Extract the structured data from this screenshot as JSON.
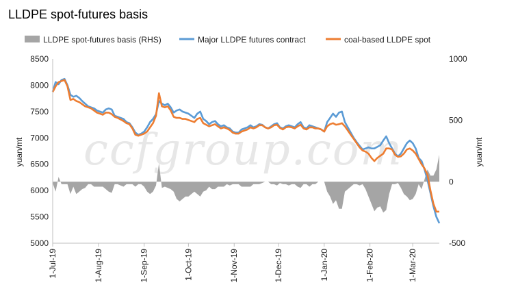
{
  "chart_data": {
    "type": "line",
    "title": "LLDPE spot-futures basis",
    "watermark": "ccfgroup.com",
    "ylabel_left": "yuan/mt",
    "ylabel_right": "yuan/mt",
    "ylim_left": [
      5000,
      8500
    ],
    "yticks_left": [
      5000,
      5500,
      6000,
      6500,
      7000,
      7500,
      8000,
      8500
    ],
    "ylim_right": [
      -500,
      1000
    ],
    "yticks_right": [
      -500,
      0,
      500,
      1000
    ],
    "x_range": [
      0,
      262
    ],
    "x_ticks": [
      {
        "label": "1-Jul-19",
        "x": 0
      },
      {
        "label": "1-Aug-19",
        "x": 31
      },
      {
        "label": "1-Sep-19",
        "x": 62
      },
      {
        "label": "1-Oct-19",
        "x": 92
      },
      {
        "label": "1-Nov-19",
        "x": 123
      },
      {
        "label": "1-Dec-19",
        "x": 153
      },
      {
        "label": "1-Jan-20",
        "x": 184
      },
      {
        "label": "1-Feb-20",
        "x": 215
      },
      {
        "label": "1-Mar-20",
        "x": 244
      }
    ],
    "legend": [
      {
        "name": "LLDPE spot-futures basis (RHS)",
        "color": "#a5a5a5",
        "kind": "area"
      },
      {
        "name": "Major LLDPE futures contract",
        "color": "#5b9bd5",
        "kind": "line"
      },
      {
        "name": "coal-based LLDPE spot",
        "color": "#ed7d31",
        "kind": "line"
      }
    ],
    "series": [
      {
        "name": "Major LLDPE futures contract",
        "axis": "left",
        "color": "#5b9bd5",
        "x": [
          0,
          2,
          4,
          6,
          8,
          10,
          12,
          14,
          16,
          18,
          20,
          22,
          24,
          26,
          28,
          30,
          32,
          34,
          36,
          38,
          40,
          42,
          44,
          46,
          48,
          50,
          52,
          54,
          56,
          58,
          60,
          62,
          64,
          66,
          68,
          70,
          72,
          74,
          76,
          78,
          80,
          82,
          84,
          86,
          88,
          90,
          92,
          94,
          96,
          98,
          100,
          102,
          104,
          106,
          108,
          110,
          112,
          114,
          116,
          118,
          120,
          122,
          124,
          126,
          128,
          130,
          132,
          134,
          136,
          138,
          140,
          142,
          144,
          146,
          148,
          150,
          152,
          154,
          156,
          158,
          160,
          162,
          164,
          166,
          168,
          170,
          172,
          174,
          176,
          178,
          180,
          182,
          184,
          186,
          188,
          190,
          192,
          194,
          196,
          198,
          200,
          202,
          204,
          206,
          208,
          210,
          212,
          214,
          216,
          218,
          220,
          222,
          224,
          226,
          228,
          230,
          232,
          234,
          236,
          238,
          240,
          242,
          244,
          246,
          248,
          250,
          252,
          254,
          256,
          258,
          260,
          262
        ],
        "values": [
          7880,
          8060,
          8020,
          8100,
          8120,
          8000,
          7820,
          7780,
          7800,
          7760,
          7700,
          7650,
          7600,
          7580,
          7560,
          7520,
          7500,
          7480,
          7540,
          7560,
          7540,
          7420,
          7400,
          7380,
          7360,
          7300,
          7280,
          7200,
          7100,
          7060,
          7080,
          7120,
          7200,
          7300,
          7360,
          7450,
          7700,
          7650,
          7620,
          7650,
          7580,
          7480,
          7520,
          7540,
          7500,
          7480,
          7460,
          7420,
          7380,
          7460,
          7500,
          7360,
          7320,
          7260,
          7300,
          7320,
          7260,
          7220,
          7240,
          7200,
          7180,
          7120,
          7100,
          7100,
          7160,
          7180,
          7200,
          7240,
          7200,
          7220,
          7260,
          7250,
          7200,
          7180,
          7220,
          7260,
          7280,
          7200,
          7180,
          7220,
          7240,
          7220,
          7200,
          7260,
          7300,
          7200,
          7180,
          7240,
          7220,
          7200,
          7180,
          7160,
          7120,
          7300,
          7380,
          7460,
          7400,
          7480,
          7500,
          7300,
          7200,
          7100,
          7000,
          6920,
          6850,
          6780,
          6800,
          6820,
          6800,
          6800,
          6830,
          6860,
          6950,
          7030,
          6900,
          6800,
          6700,
          6650,
          6700,
          6800,
          6900,
          6950,
          6900,
          6800,
          6620,
          6560,
          6400,
          6200,
          5950,
          5700,
          5500,
          5380
        ]
      },
      {
        "name": "coal-based LLDPE spot",
        "axis": "left",
        "color": "#ed7d31",
        "x": [
          0,
          2,
          4,
          6,
          8,
          10,
          12,
          14,
          16,
          18,
          20,
          22,
          24,
          26,
          28,
          30,
          32,
          34,
          36,
          38,
          40,
          42,
          44,
          46,
          48,
          50,
          52,
          54,
          56,
          58,
          60,
          62,
          64,
          66,
          68,
          70,
          72,
          74,
          76,
          78,
          80,
          82,
          84,
          86,
          88,
          90,
          92,
          94,
          96,
          98,
          100,
          102,
          104,
          106,
          108,
          110,
          112,
          114,
          116,
          118,
          120,
          122,
          124,
          126,
          128,
          130,
          132,
          134,
          136,
          138,
          140,
          142,
          144,
          146,
          148,
          150,
          152,
          154,
          156,
          158,
          160,
          162,
          164,
          166,
          168,
          170,
          172,
          174,
          176,
          178,
          180,
          182,
          184,
          186,
          188,
          190,
          192,
          194,
          196,
          198,
          200,
          202,
          204,
          206,
          208,
          210,
          212,
          214,
          216,
          218,
          220,
          222,
          224,
          226,
          228,
          230,
          232,
          234,
          236,
          238,
          240,
          242,
          244,
          246,
          248,
          250,
          252,
          254,
          256,
          258,
          260,
          262
        ],
        "values": [
          7870,
          7980,
          8060,
          8080,
          8100,
          7980,
          7720,
          7740,
          7700,
          7680,
          7640,
          7600,
          7580,
          7560,
          7520,
          7480,
          7460,
          7440,
          7480,
          7480,
          7450,
          7400,
          7380,
          7350,
          7320,
          7280,
          7260,
          7180,
          7060,
          7040,
          7060,
          7080,
          7120,
          7200,
          7280,
          7420,
          7850,
          7600,
          7580,
          7600,
          7520,
          7400,
          7380,
          7380,
          7360,
          7360,
          7340,
          7320,
          7300,
          7360,
          7380,
          7280,
          7250,
          7220,
          7240,
          7260,
          7220,
          7180,
          7200,
          7180,
          7150,
          7100,
          7080,
          7080,
          7120,
          7140,
          7160,
          7200,
          7180,
          7200,
          7240,
          7240,
          7200,
          7180,
          7200,
          7240,
          7250,
          7190,
          7160,
          7200,
          7210,
          7200,
          7180,
          7220,
          7250,
          7180,
          7160,
          7200,
          7200,
          7180,
          7180,
          7160,
          7120,
          7220,
          7260,
          7280,
          7250,
          7260,
          7280,
          7220,
          7140,
          7060,
          6980,
          6900,
          6820,
          6760,
          6740,
          6700,
          6620,
          6560,
          6620,
          6660,
          6700,
          6800,
          6800,
          6780,
          6680,
          6640,
          6650,
          6700,
          6780,
          6800,
          6760,
          6700,
          6600,
          6500,
          6420,
          6300,
          6000,
          5750,
          5600,
          5600
        ]
      },
      {
        "name": "LLDPE spot-futures basis (RHS)",
        "axis": "right",
        "color": "#a5a5a5",
        "x": [
          0,
          2,
          4,
          6,
          8,
          10,
          12,
          14,
          16,
          18,
          20,
          22,
          24,
          26,
          28,
          30,
          32,
          34,
          36,
          38,
          40,
          42,
          44,
          46,
          48,
          50,
          52,
          54,
          56,
          58,
          60,
          62,
          64,
          66,
          68,
          70,
          72,
          74,
          76,
          78,
          80,
          82,
          84,
          86,
          88,
          90,
          92,
          94,
          96,
          98,
          100,
          102,
          104,
          106,
          108,
          110,
          112,
          114,
          116,
          118,
          120,
          122,
          124,
          126,
          128,
          130,
          132,
          134,
          136,
          138,
          140,
          142,
          144,
          146,
          148,
          150,
          152,
          154,
          156,
          158,
          160,
          162,
          164,
          166,
          168,
          170,
          172,
          174,
          176,
          178,
          180,
          182,
          184,
          186,
          188,
          190,
          192,
          194,
          196,
          198,
          200,
          202,
          204,
          206,
          208,
          210,
          212,
          214,
          216,
          218,
          220,
          222,
          224,
          226,
          228,
          230,
          232,
          234,
          236,
          238,
          240,
          242,
          244,
          246,
          248,
          250,
          252,
          254,
          256,
          258,
          260,
          262
        ],
        "values": [
          -10,
          -80,
          40,
          -20,
          -20,
          -20,
          -100,
          -40,
          -100,
          -80,
          -60,
          -50,
          -20,
          -20,
          -40,
          -40,
          -40,
          -40,
          -60,
          -80,
          -90,
          -20,
          -20,
          -30,
          -40,
          -20,
          -20,
          -20,
          -40,
          -20,
          -20,
          -40,
          -80,
          -100,
          -80,
          -30,
          150,
          -50,
          -40,
          -50,
          -60,
          -80,
          -140,
          -160,
          -140,
          -120,
          -120,
          -100,
          -80,
          -100,
          -120,
          -80,
          -70,
          -40,
          -60,
          -60,
          -40,
          -40,
          -40,
          -20,
          -30,
          -20,
          -20,
          -20,
          -40,
          -40,
          -40,
          -40,
          -20,
          -20,
          -20,
          -10,
          0,
          0,
          -20,
          -20,
          -30,
          -10,
          -20,
          -20,
          -30,
          -20,
          -20,
          -40,
          -50,
          -20,
          -20,
          -40,
          -20,
          -20,
          0,
          0,
          0,
          -80,
          -120,
          -180,
          -150,
          -220,
          -220,
          -80,
          -60,
          -40,
          -20,
          -20,
          -30,
          -20,
          -60,
          -120,
          -180,
          -240,
          -210,
          -200,
          -250,
          -230,
          -100,
          -20,
          -20,
          -10,
          -50,
          -100,
          -120,
          -150,
          -140,
          -100,
          -20,
          -60,
          20,
          100,
          50,
          50,
          100,
          220
        ]
      }
    ]
  }
}
